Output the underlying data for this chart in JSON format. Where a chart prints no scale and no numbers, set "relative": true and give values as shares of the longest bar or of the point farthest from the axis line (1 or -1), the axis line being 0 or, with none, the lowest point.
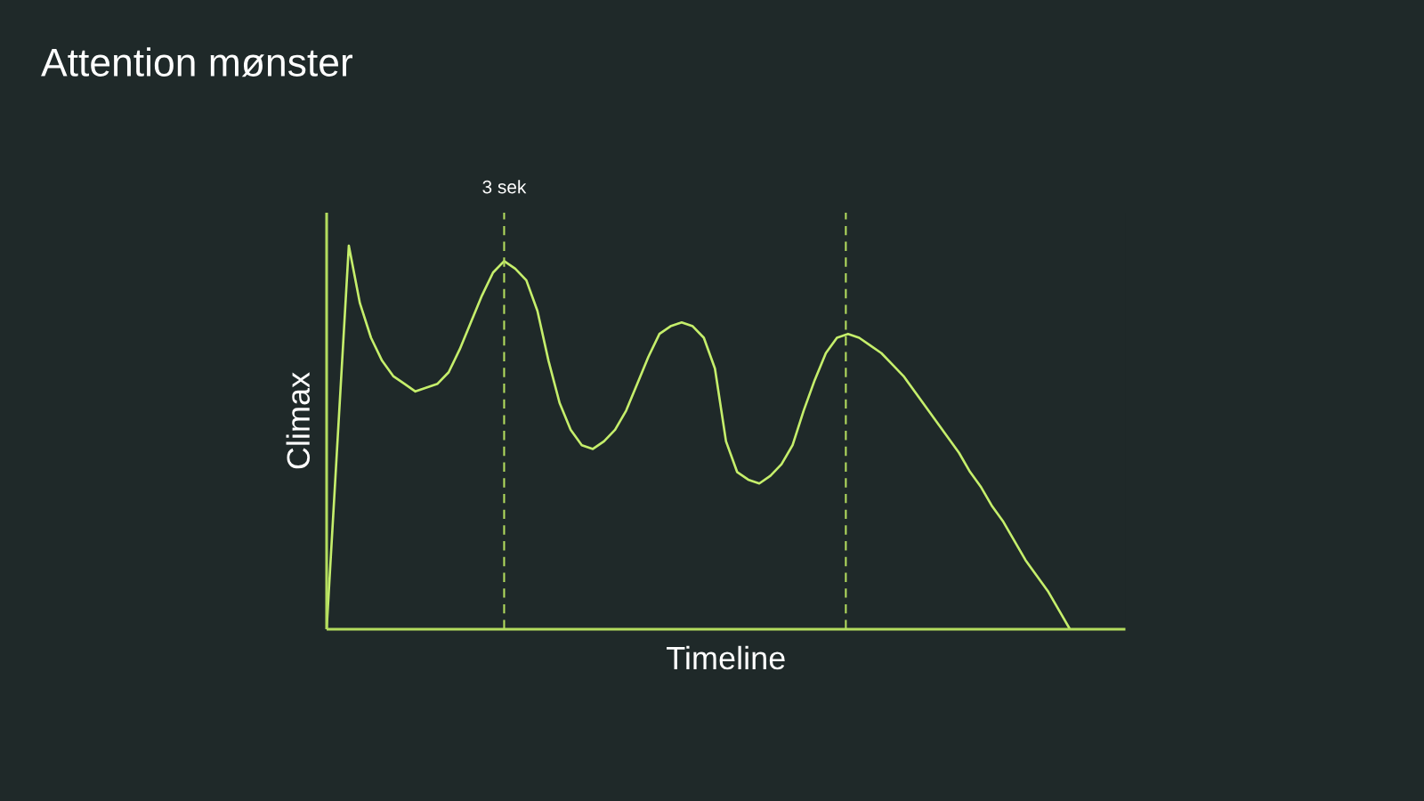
{
  "chart_data": {
    "type": "line",
    "title": "Attention mønster",
    "xlabel": "Timeline",
    "ylabel": "Climax",
    "relative": true,
    "categories": [
      null,
      null,
      null,
      null,
      null,
      null,
      null,
      null,
      null,
      null,
      null,
      null,
      null,
      null,
      null,
      null,
      null,
      null,
      null,
      null,
      null,
      null,
      null,
      null,
      null,
      null,
      null,
      null,
      null,
      null,
      null,
      null,
      null,
      null,
      null,
      null,
      null,
      null,
      null,
      null,
      null,
      null,
      null,
      null,
      null,
      null,
      null,
      null,
      null,
      null,
      null,
      null,
      null,
      null,
      null,
      null,
      null,
      null,
      null,
      null,
      null,
      null,
      null,
      null,
      null,
      null,
      null,
      null,
      null,
      null,
      null,
      null,
      null
    ],
    "series": [
      {
        "color": "#c5ee6b",
        "values": [
          0,
          0.5,
          1.0,
          0.85,
          0.76,
          0.7,
          0.66,
          0.64,
          0.62,
          0.63,
          0.64,
          0.67,
          0.73,
          0.8,
          0.87,
          0.93,
          0.96,
          0.94,
          0.91,
          0.83,
          0.7,
          0.59,
          0.52,
          0.48,
          0.47,
          0.49,
          0.52,
          0.57,
          0.64,
          0.71,
          0.77,
          0.79,
          0.8,
          0.79,
          0.76,
          0.68,
          0.49,
          0.41,
          0.39,
          0.38,
          0.4,
          0.43,
          0.48,
          0.57,
          0.65,
          0.72,
          0.76,
          0.77,
          0.76,
          0.74,
          0.72,
          0.69,
          0.66,
          0.62,
          0.58,
          0.54,
          0.5,
          0.46,
          0.41,
          0.37,
          0.32,
          0.28,
          0.23,
          0.18,
          0.14,
          0.1,
          0.05,
          0,
          null,
          null,
          null,
          null,
          null
        ]
      }
    ],
    "annotations": [
      "3 sek"
    ]
  }
}
